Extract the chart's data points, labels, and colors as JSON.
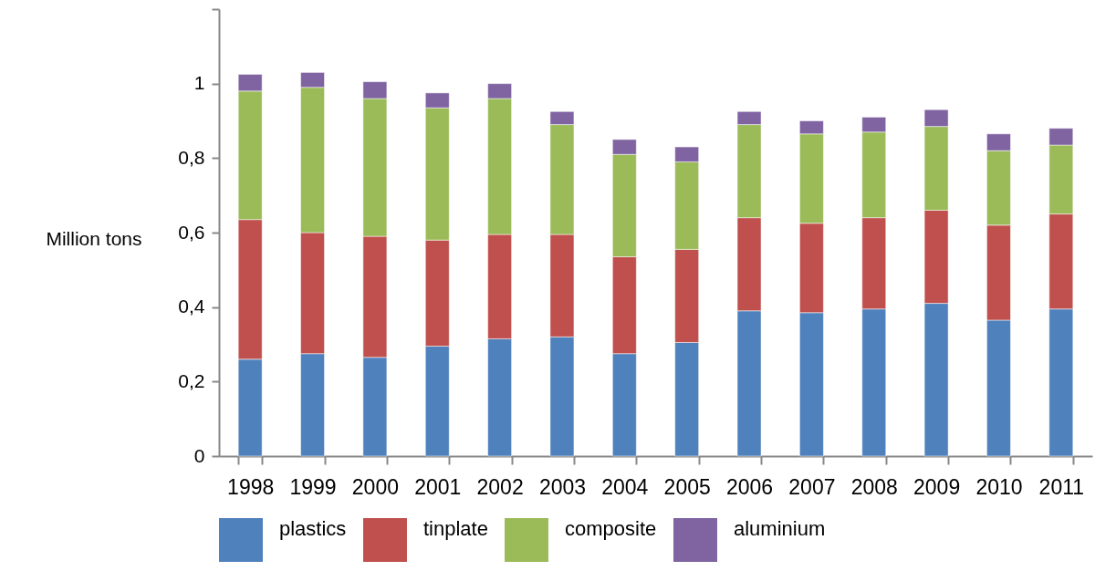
{
  "chart_data": {
    "type": "bar",
    "stacked": true,
    "ylabel": "Million tons",
    "categories": [
      "1998",
      "1999",
      "2000",
      "2001",
      "2002",
      "2003",
      "2004",
      "2005",
      "2006",
      "2007",
      "2008",
      "2009",
      "2010",
      "2011"
    ],
    "series": [
      {
        "name": "plastics",
        "color": "#4f81bd",
        "values": [
          0.26,
          0.275,
          0.265,
          0.295,
          0.315,
          0.32,
          0.275,
          0.305,
          0.39,
          0.385,
          0.395,
          0.41,
          0.365,
          0.395
        ]
      },
      {
        "name": "tinplate",
        "color": "#c0504d",
        "values": [
          0.375,
          0.325,
          0.325,
          0.285,
          0.28,
          0.275,
          0.26,
          0.25,
          0.25,
          0.24,
          0.245,
          0.25,
          0.255,
          0.255
        ]
      },
      {
        "name": "composite",
        "color": "#9bbb59",
        "values": [
          0.345,
          0.39,
          0.37,
          0.355,
          0.365,
          0.295,
          0.275,
          0.235,
          0.25,
          0.24,
          0.23,
          0.225,
          0.2,
          0.185
        ]
      },
      {
        "name": "aluminium",
        "color": "#8064a2",
        "values": [
          0.045,
          0.04,
          0.045,
          0.04,
          0.04,
          0.035,
          0.04,
          0.04,
          0.035,
          0.035,
          0.04,
          0.045,
          0.045,
          0.045
        ]
      }
    ],
    "ylim": [
      0,
      1.2
    ],
    "yticks": [
      {
        "value": 0,
        "label": "0"
      },
      {
        "value": 0.2,
        "label": "0,2"
      },
      {
        "value": 0.4,
        "label": "0,4"
      },
      {
        "value": 0.6,
        "label": "0,6"
      },
      {
        "value": 0.8,
        "label": "0,8"
      },
      {
        "value": 1,
        "label": "1"
      },
      {
        "value": 1.2,
        "label": null
      }
    ],
    "grid": false,
    "legend": "bottom"
  }
}
